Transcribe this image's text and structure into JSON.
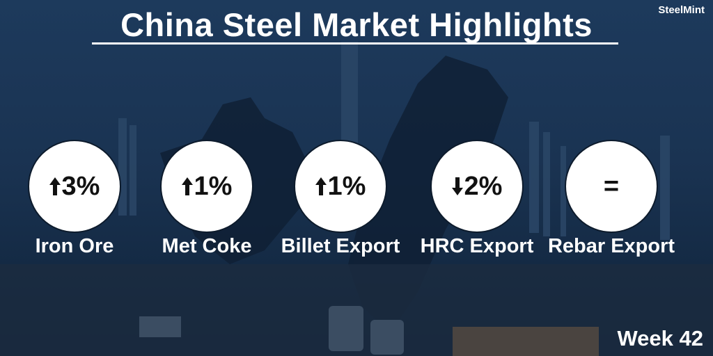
{
  "header": {
    "title": "China Steel Market Highlights",
    "logo": "SteelMint"
  },
  "items": [
    {
      "label": "Iron Ore",
      "value": "3%",
      "direction": "up"
    },
    {
      "label": "Met Coke",
      "value": "1%",
      "direction": "up"
    },
    {
      "label": "Billet Export",
      "value": "1%",
      "direction": "up"
    },
    {
      "label": "HRC Export",
      "value": "2%",
      "direction": "down"
    },
    {
      "label": "Rebar Export",
      "value": "=",
      "direction": "flat"
    }
  ],
  "footer": {
    "week": "Week 42"
  }
}
